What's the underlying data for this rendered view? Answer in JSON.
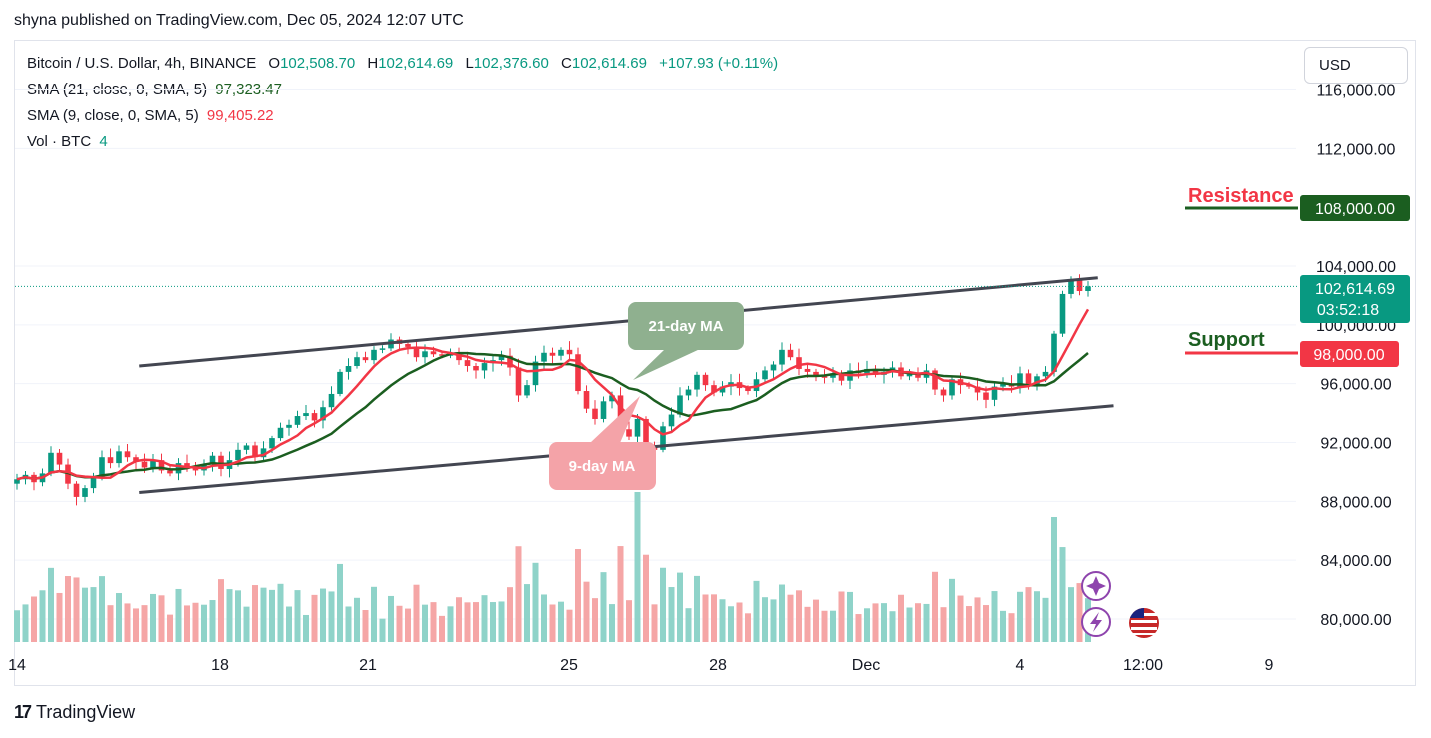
{
  "header": {
    "published": "shyna published on TradingView.com, Dec 05, 2024 12:07 UTC"
  },
  "legend": {
    "symbol": "Bitcoin / U.S. Dollar, 4h, BINANCE",
    "o_label": "O",
    "o": "102,508.70",
    "h_label": "H",
    "h": "102,614.69",
    "l_label": "L",
    "l": "102,376.60",
    "c_label": "C",
    "c": "102,614.69",
    "change": "+107.93 (+0.11%)",
    "sma21_label": "SMA (21, close, 0, SMA, 5)",
    "sma21_value": "97,323.47",
    "sma9_label": "SMA (9, close, 0, SMA, 5)",
    "sma9_value": "99,405.22",
    "vol_label": "Vol · BTC",
    "vol_value": "4"
  },
  "currency_button": "USD",
  "price_axis": {
    "ticks": [
      "116,000.00",
      "112,000.00",
      "104,000.00",
      "100,000.00",
      "96,000.00",
      "92,000.00",
      "88,000.00",
      "84,000.00",
      "80,000.00"
    ],
    "current_price": "102,614.69",
    "countdown": "03:52:18",
    "resistance_price": "108,000.00",
    "support_price": "98,000.00"
  },
  "time_axis": {
    "labels": [
      "14",
      "18",
      "21",
      "25",
      "28",
      "Dec",
      "4",
      "12:00",
      "9"
    ]
  },
  "annotations": {
    "resistance": "Resistance",
    "support": "Support",
    "ma21": "21-day MA",
    "ma9": "9-day MA"
  },
  "footer": {
    "brand": "TradingView",
    "logo": "17"
  },
  "colors": {
    "up": "#089981",
    "down": "#f23645",
    "sma21": "#1b5e20",
    "sma9": "#f23645",
    "vol_up": "#8fd3c9",
    "vol_down": "#f5a6a6",
    "channel": "#434651",
    "resistance": "#1b5e20",
    "support": "#f23645"
  },
  "chart_data": {
    "type": "candlestick",
    "timeframe": "4h",
    "x_start": "2024-11-14",
    "x_end": "2024-12-05",
    "ylim": [
      78000,
      118000
    ],
    "y_ticks": [
      80000,
      84000,
      88000,
      92000,
      96000,
      100000,
      104000,
      112000,
      116000
    ],
    "close_path": [
      89500,
      89800,
      89300,
      89900,
      91300,
      90500,
      89200,
      88300,
      88900,
      89700,
      91000,
      90600,
      91400,
      91000,
      90700,
      90300,
      90800,
      90100,
      89900,
      90600,
      90300,
      90100,
      90500,
      91100,
      90200,
      90800,
      91500,
      91800,
      91000,
      91600,
      92300,
      93000,
      93200,
      93800,
      94000,
      93500,
      94400,
      95300,
      96800,
      97200,
      97800,
      97600,
      98300,
      98400,
      99000,
      98700,
      98500,
      97800,
      98200,
      98000,
      97900,
      98100,
      97600,
      97200,
      96900,
      97400,
      97600,
      97900,
      97100,
      95200,
      95900,
      97500,
      98100,
      97900,
      98300,
      98000,
      95500,
      94300,
      93600,
      94800,
      95200,
      92900,
      92400,
      93600,
      91800,
      91500,
      93100,
      93900,
      95200,
      95600,
      96600,
      95900,
      95400,
      95800,
      96100,
      95700,
      95500,
      96300,
      96900,
      97300,
      98300,
      97800,
      97000,
      96800,
      96500,
      96400,
      96700,
      96200,
      96900,
      96700,
      97000,
      96600,
      96800,
      97100,
      96500,
      96700,
      96400,
      96900,
      95600,
      95200,
      96300,
      95900,
      95800,
      95400,
      94900,
      95800,
      96000,
      95800,
      96700,
      95800,
      96500,
      96800,
      99400,
      102100,
      103100,
      102300,
      102614.69
    ],
    "sma9_last": 99405.22,
    "sma21_last": 97323.47,
    "last": {
      "open": 102508.7,
      "high": 102614.69,
      "low": 102376.6,
      "close": 102614.69,
      "change": 107.93,
      "change_pct": 0.11
    },
    "volume_last": 4,
    "channel": {
      "upper": [
        {
          "x": "2024-11-17",
          "y": 97200
        },
        {
          "x": "2024-12-05",
          "y": 103200
        }
      ],
      "lower": [
        {
          "x": "2024-11-17",
          "y": 88600
        },
        {
          "x": "2024-12-06",
          "y": 94500
        }
      ]
    },
    "levels": [
      {
        "name": "Resistance",
        "price": 108000
      },
      {
        "name": "Support",
        "price": 98000
      }
    ]
  }
}
